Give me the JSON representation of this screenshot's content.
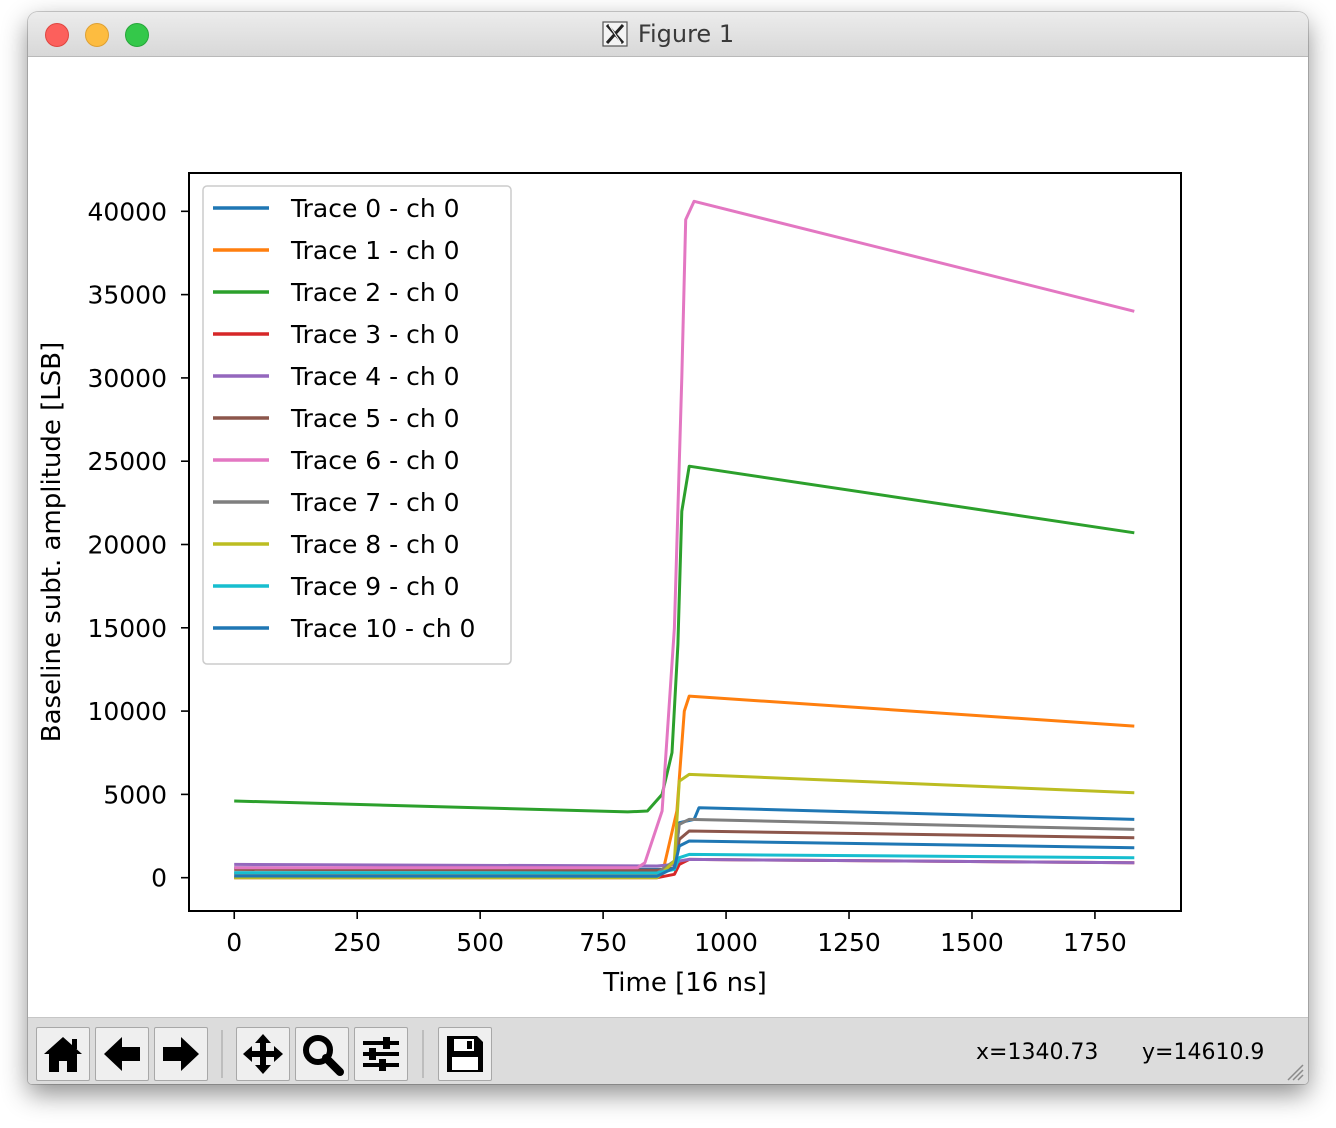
{
  "window": {
    "title": "Figure 1",
    "icon": "x11-icon"
  },
  "toolbar": {
    "buttons": [
      {
        "name": "home-button",
        "icon": "home-icon"
      },
      {
        "name": "back-button",
        "icon": "arrow-left-icon"
      },
      {
        "name": "forward-button",
        "icon": "arrow-right-icon"
      },
      {
        "name": "pan-button",
        "icon": "move-icon"
      },
      {
        "name": "zoom-button",
        "icon": "magnifier-icon"
      },
      {
        "name": "configure-subplots-button",
        "icon": "sliders-icon"
      },
      {
        "name": "save-button",
        "icon": "floppy-disk-icon"
      }
    ],
    "x_readout": "x=1340.73",
    "y_readout": "y=14610.9"
  },
  "chart_data": {
    "type": "line",
    "title": "",
    "xlabel": "Time [16 ns]",
    "ylabel": "Baseline subt. amplitude [LSB]",
    "xlim": [
      -92,
      1925
    ],
    "ylim": [
      -2000,
      42300
    ],
    "xticks": [
      0,
      250,
      500,
      750,
      1000,
      1250,
      1500,
      1750
    ],
    "yticks": [
      0,
      5000,
      10000,
      15000,
      20000,
      25000,
      30000,
      35000,
      40000
    ],
    "grid": false,
    "legend_position": "upper-left",
    "series": [
      {
        "name": "Trace 0 - ch 0",
        "color": "#1f77b4",
        "x": [
          0,
          860,
          895,
          905,
          935,
          945,
          1830
        ],
        "y": [
          600,
          500,
          520,
          3300,
          3500,
          4200,
          3500
        ]
      },
      {
        "name": "Trace 1 - ch 0",
        "color": "#ff7f0e",
        "x": [
          0,
          870,
          900,
          915,
          925,
          1830
        ],
        "y": [
          200,
          180,
          4000,
          10000,
          10900,
          9100
        ]
      },
      {
        "name": "Trace 2 - ch 0",
        "color": "#2ca02c",
        "x": [
          0,
          800,
          840,
          870,
          890,
          902,
          910,
          925,
          1830
        ],
        "y": [
          4600,
          3950,
          4000,
          5000,
          7500,
          14000,
          22000,
          24700,
          20700
        ]
      },
      {
        "name": "Trace 3 - ch 0",
        "color": "#d62728",
        "x": [
          0,
          860,
          895,
          905,
          925,
          1830
        ],
        "y": [
          0,
          0,
          200,
          800,
          1100,
          900
        ]
      },
      {
        "name": "Trace 4 - ch 0",
        "color": "#9467bd",
        "x": [
          0,
          860,
          895,
          905,
          925,
          1830
        ],
        "y": [
          800,
          700,
          800,
          1000,
          1100,
          900
        ]
      },
      {
        "name": "Trace 5 - ch 0",
        "color": "#8c564b",
        "x": [
          0,
          860,
          895,
          905,
          925,
          1830
        ],
        "y": [
          500,
          450,
          600,
          2300,
          2800,
          2400
        ]
      },
      {
        "name": "Trace 6 - ch 0",
        "color": "#e377c2",
        "x": [
          0,
          820,
          835,
          870,
          895,
          910,
          918,
          935,
          1830
        ],
        "y": [
          600,
          600,
          900,
          4000,
          15000,
          30000,
          39500,
          40600,
          34000
        ]
      },
      {
        "name": "Trace 7 - ch 0",
        "color": "#7f7f7f",
        "x": [
          0,
          860,
          895,
          905,
          925,
          1830
        ],
        "y": [
          300,
          280,
          1000,
          3200,
          3500,
          2900
        ]
      },
      {
        "name": "Trace 8 - ch 0",
        "color": "#bcbd22",
        "x": [
          0,
          860,
          895,
          905,
          925,
          1830
        ],
        "y": [
          0,
          0,
          1000,
          5800,
          6200,
          5100
        ]
      },
      {
        "name": "Trace 9 - ch 0",
        "color": "#17becf",
        "x": [
          0,
          860,
          895,
          905,
          925,
          1830
        ],
        "y": [
          300,
          280,
          500,
          1200,
          1400,
          1200
        ]
      },
      {
        "name": "Trace 10 - ch 0",
        "color": "#1f77b4",
        "x": [
          0,
          860,
          895,
          905,
          925,
          1830
        ],
        "y": [
          100,
          90,
          600,
          1900,
          2200,
          1800
        ]
      }
    ]
  }
}
